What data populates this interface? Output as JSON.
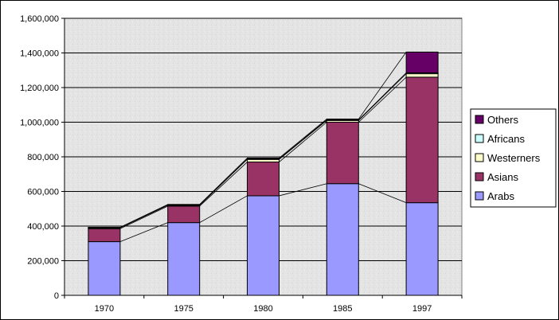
{
  "chart_data": {
    "type": "bar",
    "stacked": true,
    "categories": [
      "1970",
      "1975",
      "1980",
      "1985",
      "1997"
    ],
    "series": [
      {
        "name": "Arabs",
        "color": "#9999ff",
        "values": [
          310000,
          420000,
          575000,
          645000,
          535000
        ]
      },
      {
        "name": "Asians",
        "color": "#993366",
        "values": [
          75000,
          95000,
          195000,
          355000,
          725000
        ]
      },
      {
        "name": "Westerners",
        "color": "#ffffcc",
        "values": [
          5000,
          5000,
          15000,
          10000,
          20000
        ]
      },
      {
        "name": "Africans",
        "color": "#ccffff",
        "values": [
          1000,
          2000,
          3000,
          3000,
          5000
        ]
      },
      {
        "name": "Others",
        "color": "#660066",
        "values": [
          2000,
          3000,
          5000,
          5000,
          120000
        ]
      }
    ],
    "ylim": [
      0,
      1600000
    ],
    "yticks": [
      "0",
      "200,000",
      "400,000",
      "600,000",
      "800,000",
      "1,000,000",
      "1,200,000",
      "1,400,000",
      "1,600,000"
    ],
    "ytick_values": [
      0,
      200000,
      400000,
      600000,
      800000,
      1000000,
      1200000,
      1400000,
      1600000
    ],
    "grid": true,
    "series_lines": true,
    "legend": {
      "placement": "right",
      "order": [
        "Others",
        "Africans",
        "Westerners",
        "Asians",
        "Arabs"
      ]
    },
    "title": "",
    "xlabel": "",
    "ylabel": ""
  },
  "colors": {
    "plot_background": "#e6e6e6",
    "gridline": "#000000",
    "border": "#000000"
  }
}
